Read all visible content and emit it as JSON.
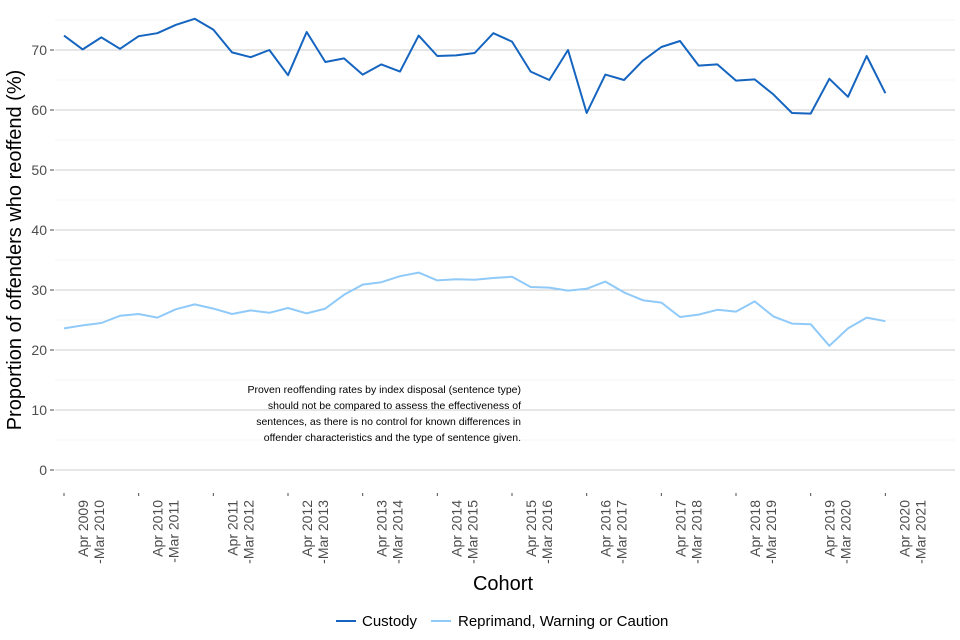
{
  "chart_data": {
    "type": "line",
    "xlabel": "Cohort",
    "ylabel": "Proportion of offenders who reoffend (%)",
    "ylim": [
      -2,
      76
    ],
    "yticks": [
      0,
      10,
      20,
      30,
      40,
      50,
      60,
      70
    ],
    "grid": true,
    "legend_position": "bottom",
    "x_period_labels": [
      [
        "Apr 2009",
        "-Mar 2010"
      ],
      [
        "Apr 2010",
        "-Mar 2011"
      ],
      [
        "Apr 2011",
        "-Mar 2012"
      ],
      [
        "Apr 2012",
        "-Mar 2013"
      ],
      [
        "Apr 2013",
        "-Mar 2014"
      ],
      [
        "Apr 2014",
        "-Mar 2015"
      ],
      [
        "Apr 2015",
        "-Mar 2016"
      ],
      [
        "Apr 2016",
        "-Mar 2017"
      ],
      [
        "Apr 2017",
        "-Mar 2018"
      ],
      [
        "Apr 2018",
        "-Mar 2019"
      ],
      [
        "Apr 2019",
        "-Mar 2020"
      ],
      [
        "Apr 2020",
        "-Mar 2021"
      ]
    ],
    "annotation": [
      "Proven reoffending rates by index disposal (sentence type)",
      "should not be compared to assess the effectiveness of",
      "sentences, as there is no control for known differences in",
      "offender characteristics and the type of sentence given."
    ],
    "series": [
      {
        "name": "Custody",
        "color": "#1565c0",
        "values": [
          72.4,
          70.1,
          72.1,
          70.2,
          72.3,
          72.8,
          74.2,
          75.2,
          73.4,
          69.6,
          68.8,
          70.0,
          65.8,
          73.0,
          68.0,
          68.6,
          65.9,
          67.6,
          66.4,
          72.4,
          69.0,
          69.1,
          69.5,
          72.8,
          71.4,
          66.4,
          65.0,
          70.0,
          59.5,
          65.9,
          65.0,
          68.2,
          70.5,
          71.5,
          67.4,
          67.6,
          64.9,
          65.1,
          62.6,
          59.5,
          59.4,
          65.2,
          62.2,
          69.0,
          62.8
        ]
      },
      {
        "name": "Reprimand, Warning or Caution",
        "color": "#90caf9",
        "values": [
          23.6,
          24.1,
          24.5,
          25.7,
          26.0,
          25.4,
          26.8,
          27.6,
          26.9,
          26.0,
          26.6,
          26.2,
          27.0,
          26.1,
          26.9,
          29.2,
          30.9,
          31.3,
          32.3,
          32.9,
          31.6,
          31.8,
          31.7,
          32.0,
          32.2,
          30.5,
          30.4,
          29.9,
          30.2,
          31.4,
          29.6,
          28.3,
          27.9,
          25.5,
          25.9,
          26.7,
          26.4,
          28.1,
          25.6,
          24.4,
          24.3,
          20.7,
          23.6,
          25.4,
          24.8
        ]
      }
    ]
  }
}
